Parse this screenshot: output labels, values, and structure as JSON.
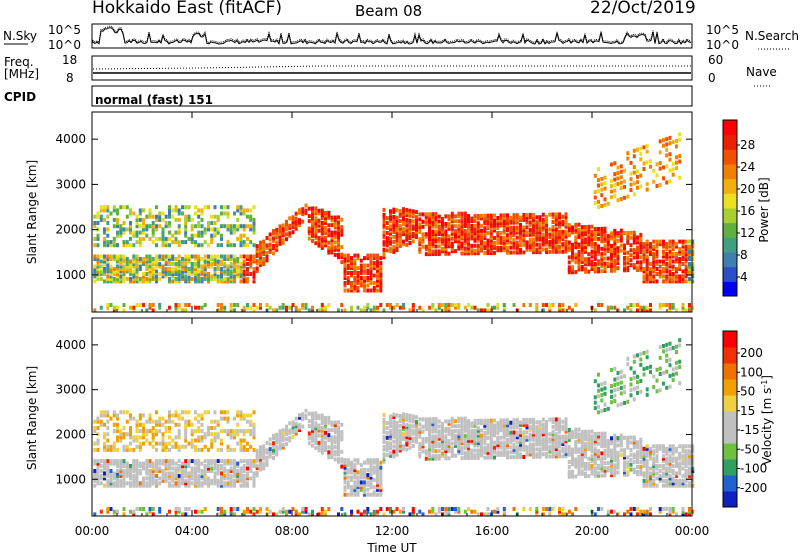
{
  "header": {
    "station": "Hokkaido East (fitACF)",
    "beam": "Beam 08",
    "date": "22/Oct/2019"
  },
  "panels": {
    "noise": {
      "left_label": "N.Sky",
      "left_ticks": [
        "10^5",
        "10^0"
      ],
      "right_ticks": [
        "10^5",
        "10^0"
      ],
      "right_label": "N.Search"
    },
    "freq": {
      "left_label_1": "Freq.",
      "left_label_2": "[MHz]",
      "left_ticks": [
        "18",
        "8"
      ],
      "right_ticks": [
        "60",
        "0"
      ],
      "right_label": "Nave"
    },
    "cpid": {
      "label": "CPID",
      "mode_text": "normal (fast) 151"
    }
  },
  "chart_data": [
    {
      "type": "heatmap",
      "quantity": "Power",
      "ylabel": "Slant Range [km]",
      "y_ticks": [
        1000,
        2000,
        3000,
        4000
      ],
      "ylim": [
        180,
        4600
      ],
      "x_ticks": [
        "00:00",
        "04:00",
        "08:00",
        "12:00",
        "16:00",
        "20:00",
        "00:00"
      ],
      "xlim_hours": [
        0,
        24
      ],
      "colorbar": {
        "label": "Power [dB]",
        "ticks": [
          "4",
          "8",
          "12",
          "16",
          "20",
          "24",
          "28"
        ],
        "colors": [
          "#0000ff",
          "#2a4fc8",
          "#3f7fb0",
          "#3f9f7f",
          "#60b040",
          "#a8d030",
          "#e8e020",
          "#f0b010",
          "#f08000",
          "#f05000",
          "#e82000",
          "#ff0000"
        ]
      }
    },
    {
      "type": "heatmap",
      "quantity": "Velocity",
      "ylabel": "Slant Range [km]",
      "y_ticks": [
        1000,
        2000,
        3000,
        4000
      ],
      "ylim": [
        180,
        4600
      ],
      "x_ticks": [
        "00:00",
        "04:00",
        "08:00",
        "12:00",
        "16:00",
        "20:00",
        "00:00"
      ],
      "xlabel": "Time UT",
      "colorbar": {
        "label_main": "Velocity [m s",
        "label_sup": "-1",
        "label_close": "]",
        "ticks": [
          "200",
          "100",
          "50",
          "15",
          "-15",
          "-50",
          "-100",
          "-200"
        ],
        "colors": [
          "#1020c0",
          "#2060d0",
          "#30a060",
          "#70c040",
          "#c0c0c0",
          "#c0c0c0",
          "#f0d040",
          "#f0a000",
          "#f07000",
          "#f03000",
          "#ff0000"
        ]
      }
    }
  ]
}
